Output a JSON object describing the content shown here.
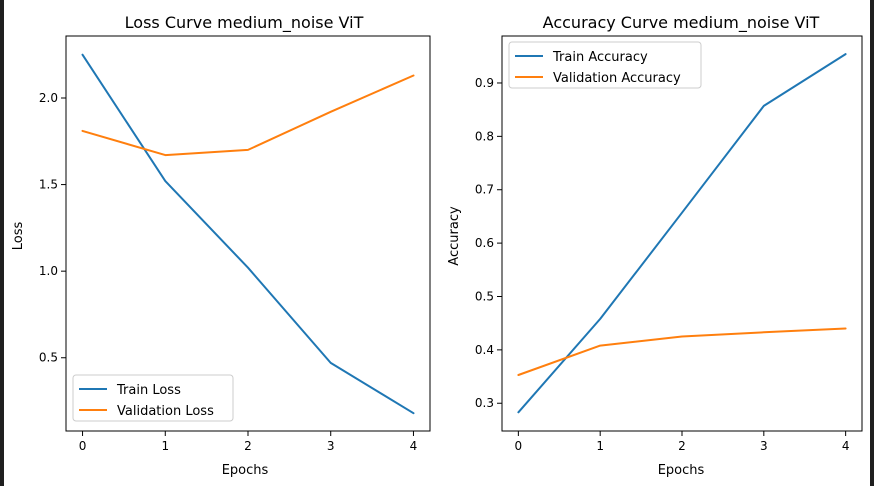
{
  "colors": {
    "background": "#ffffff",
    "frame": "#1f1f1f",
    "train": "#1f77b4",
    "validation": "#ff7f0e",
    "axes": "#000000"
  },
  "chart_data": [
    {
      "type": "line",
      "title": "Loss Curve medium_noise ViT",
      "xlabel": "Epochs",
      "ylabel": "Loss",
      "x": [
        0,
        1,
        2,
        3,
        4
      ],
      "xticks": [
        "0",
        "1",
        "2",
        "3",
        "4"
      ],
      "yticks": [
        "0.5",
        "1.0",
        "1.5",
        "2.0"
      ],
      "ytick_values": [
        0.5,
        1.0,
        1.5,
        2.0
      ],
      "xlim": [
        -0.2,
        4.2
      ],
      "ylim": [
        0.077,
        2.358
      ],
      "grid": false,
      "legend_position": "lower-left",
      "series": [
        {
          "name": "Train Loss",
          "color": "#1f77b4",
          "values": [
            2.25,
            1.52,
            1.02,
            0.47,
            0.18
          ]
        },
        {
          "name": "Validation Loss",
          "color": "#ff7f0e",
          "values": [
            1.81,
            1.67,
            1.7,
            1.92,
            2.13
          ]
        }
      ]
    },
    {
      "type": "line",
      "title": "Accuracy Curve medium_noise ViT",
      "xlabel": "Epochs",
      "ylabel": "Accuracy",
      "x": [
        0,
        1,
        2,
        3,
        4
      ],
      "xticks": [
        "0",
        "1",
        "2",
        "3",
        "4"
      ],
      "yticks": [
        "0.3",
        "0.4",
        "0.5",
        "0.6",
        "0.7",
        "0.8",
        "0.9"
      ],
      "ytick_values": [
        0.3,
        0.4,
        0.5,
        0.6,
        0.7,
        0.8,
        0.9
      ],
      "xlim": [
        -0.2,
        4.2
      ],
      "ylim": [
        0.248,
        0.988
      ],
      "grid": false,
      "legend_position": "upper-left",
      "series": [
        {
          "name": "Train Accuracy",
          "color": "#1f77b4",
          "values": [
            0.283,
            0.458,
            0.657,
            0.857,
            0.954
          ]
        },
        {
          "name": "Validation Accuracy",
          "color": "#ff7f0e",
          "values": [
            0.353,
            0.408,
            0.425,
            0.433,
            0.44
          ]
        }
      ]
    }
  ]
}
